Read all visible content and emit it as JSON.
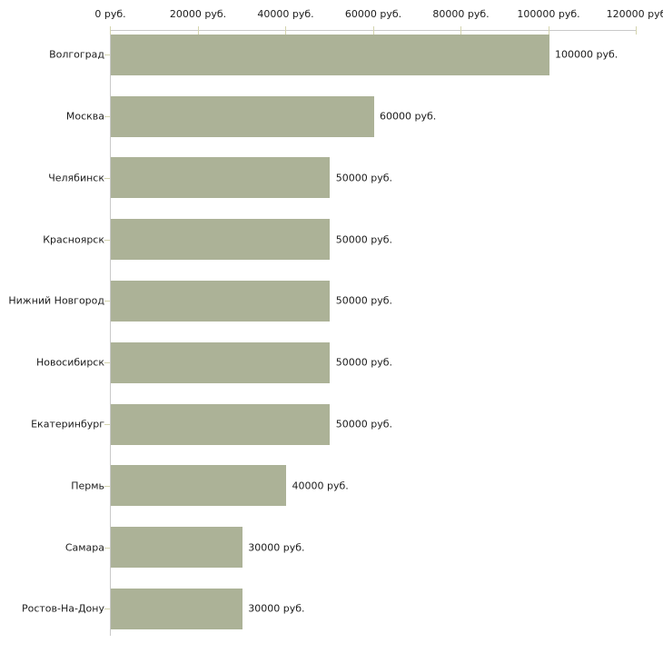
{
  "chart_data": {
    "type": "bar",
    "orientation": "horizontal",
    "title": "",
    "categories": [
      "Волгоград",
      "Москва",
      "Челябинск",
      "Красноярск",
      "Нижний Новгород",
      "Новосибирск",
      "Екатеринбург",
      "Пермь",
      "Самара",
      "Ростов-На-Дону"
    ],
    "values": [
      100000,
      60000,
      50000,
      50000,
      50000,
      50000,
      50000,
      40000,
      30000,
      30000
    ],
    "value_labels": [
      "100000 руб.",
      "60000 руб.",
      "50000 руб.",
      "50000 руб.",
      "50000 руб.",
      "50000 руб.",
      "50000 руб.",
      "40000 руб.",
      "30000 руб.",
      "30000 руб."
    ],
    "x_axis": {
      "position": "top",
      "min": 0,
      "max": 120000,
      "ticks": [
        0,
        20000,
        40000,
        60000,
        80000,
        100000,
        120000
      ],
      "tick_labels": [
        "0 руб.",
        "20000 руб.",
        "40000 руб.",
        "60000 руб.",
        "80000 руб.",
        "100000 руб.",
        "120000 руб"
      ]
    },
    "grid": false,
    "legend": false,
    "colors": {
      "bar": "#acb297",
      "axis_line": "#c9c9c9",
      "tick_mark": "#d4d4ae",
      "text": "#1c1c1c",
      "background": "#ffffff"
    }
  }
}
